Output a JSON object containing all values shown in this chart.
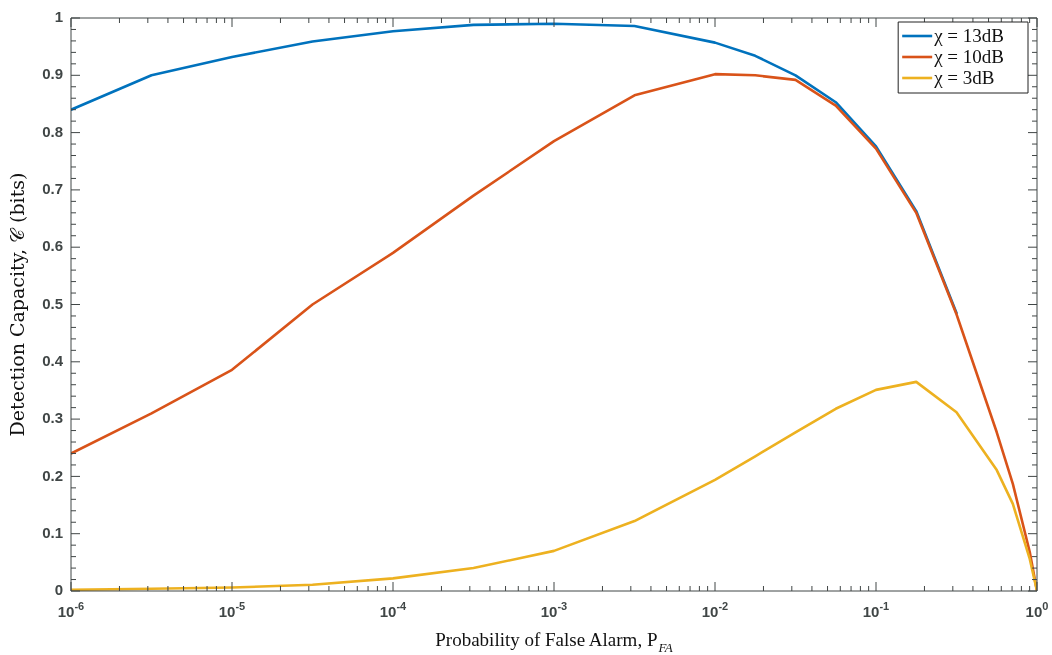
{
  "chart_data": {
    "type": "line",
    "xlabel": "Probability of False Alarm, P$_{FA}$",
    "ylabel": "Detection Capacity, 𝒞 (bits)",
    "log": "x",
    "grid": false,
    "legend": "top right",
    "marker": "none",
    "line_style": "solid",
    "x": [
      1e-06,
      3.162e-06,
      1e-05,
      3.162e-05,
      0.0001,
      0.0003162,
      0.001,
      0.003162,
      0.01,
      0.01778,
      0.03162,
      0.05623,
      0.1,
      0.1778,
      0.3162,
      0.5623,
      0.7079,
      0.9016,
      1
    ],
    "series": [
      {
        "name": "χ = 13dB",
        "color": "#0072bd",
        "values": [
          0.84,
          0.9,
          0.932,
          0.959,
          0.977,
          0.988,
          0.99,
          0.986,
          0.957,
          0.934,
          0.9,
          0.853,
          0.776,
          0.663,
          0.485,
          null,
          null,
          null,
          null
        ]
      },
      {
        "name": "χ = 10dB",
        "color": "#d95319",
        "values": [
          0.24,
          0.31,
          0.386,
          0.5,
          0.59,
          0.69,
          0.785,
          0.865,
          0.902,
          0.9,
          0.892,
          0.847,
          0.772,
          0.66,
          0.483,
          0.277,
          0.187,
          0.068,
          0
        ]
      },
      {
        "name": "χ = 3dB",
        "color": "#edb120",
        "values": [
          0.002,
          0.004,
          0.006,
          0.011,
          0.022,
          0.04,
          0.07,
          0.122,
          0.194,
          0.235,
          0.277,
          0.318,
          0.351,
          0.365,
          0.312,
          0.211,
          0.152,
          0.056,
          0
        ]
      }
    ],
    "xlim": [
      1e-06,
      1
    ],
    "ylim": [
      0,
      1
    ],
    "xticks": [
      {
        "value": 1e-06,
        "label": "10$^{-6}$"
      },
      {
        "value": 2e-06,
        "label": null
      },
      {
        "value": 3e-06,
        "label": null
      },
      {
        "value": 4e-06,
        "label": null
      },
      {
        "value": 5e-06,
        "label": null
      },
      {
        "value": 6e-06,
        "label": null
      },
      {
        "value": 7e-06,
        "label": null
      },
      {
        "value": 8e-06,
        "label": null
      },
      {
        "value": 9e-06,
        "label": null
      },
      {
        "value": 1e-05,
        "label": "10$^{-5}$"
      },
      {
        "value": 2e-05,
        "label": null
      },
      {
        "value": 3e-05,
        "label": null
      },
      {
        "value": 4e-05,
        "label": null
      },
      {
        "value": 5e-05,
        "label": null
      },
      {
        "value": 6e-05,
        "label": null
      },
      {
        "value": 7e-05,
        "label": null
      },
      {
        "value": 8e-05,
        "label": null
      },
      {
        "value": 9e-05,
        "label": null
      },
      {
        "value": 0.0001,
        "label": "10$^{-4}$"
      },
      {
        "value": 0.0002,
        "label": null
      },
      {
        "value": 0.0003,
        "label": null
      },
      {
        "value": 0.0004,
        "label": null
      },
      {
        "value": 0.0005,
        "label": null
      },
      {
        "value": 0.0006,
        "label": null
      },
      {
        "value": 0.0007,
        "label": null
      },
      {
        "value": 0.0008,
        "label": null
      },
      {
        "value": 0.0009,
        "label": null
      },
      {
        "value": 0.001,
        "label": "10$^{-3}$"
      },
      {
        "value": 0.002,
        "label": null
      },
      {
        "value": 0.003,
        "label": null
      },
      {
        "value": 0.004,
        "label": null
      },
      {
        "value": 0.005,
        "label": null
      },
      {
        "value": 0.006,
        "label": null
      },
      {
        "value": 0.007,
        "label": null
      },
      {
        "value": 0.008,
        "label": null
      },
      {
        "value": 0.009,
        "label": null
      },
      {
        "value": 0.01,
        "label": "10$^{-2}$"
      },
      {
        "value": 0.02,
        "label": null
      },
      {
        "value": 0.03,
        "label": null
      },
      {
        "value": 0.04,
        "label": null
      },
      {
        "value": 0.05,
        "label": null
      },
      {
        "value": 0.06,
        "label": null
      },
      {
        "value": 0.07,
        "label": null
      },
      {
        "value": 0.08,
        "label": null
      },
      {
        "value": 0.09,
        "label": null
      },
      {
        "value": 0.1,
        "label": "10$^{-1}$"
      },
      {
        "value": 0.2,
        "label": null
      },
      {
        "value": 0.3,
        "label": null
      },
      {
        "value": 0.4,
        "label": null
      },
      {
        "value": 0.5,
        "label": null
      },
      {
        "value": 0.6,
        "label": null
      },
      {
        "value": 0.7,
        "label": null
      },
      {
        "value": 0.8,
        "label": null
      },
      {
        "value": 0.9,
        "label": null
      },
      {
        "value": 1,
        "label": "10$^{0}$"
      }
    ],
    "yticks": [
      0,
      {
        "value": 0.02,
        "label": null
      },
      {
        "value": 0.04,
        "label": null
      },
      {
        "value": 0.06,
        "label": null
      },
      {
        "value": 0.08,
        "label": null
      },
      0.1,
      {
        "value": 0.12,
        "label": null
      },
      {
        "value": 0.14,
        "label": null
      },
      {
        "value": 0.16,
        "label": null
      },
      {
        "value": 0.18,
        "label": null
      },
      0.2,
      {
        "value": 0.22,
        "label": null
      },
      {
        "value": 0.24,
        "label": null
      },
      {
        "value": 0.26,
        "label": null
      },
      {
        "value": 0.28,
        "label": null
      },
      0.3,
      {
        "value": 0.32,
        "label": null
      },
      {
        "value": 0.34,
        "label": null
      },
      {
        "value": 0.36,
        "label": null
      },
      {
        "value": 0.38,
        "label": null
      },
      0.4,
      {
        "value": 0.42,
        "label": null
      },
      {
        "value": 0.44,
        "label": null
      },
      {
        "value": 0.46,
        "label": null
      },
      {
        "value": 0.48,
        "label": null
      },
      0.5,
      {
        "value": 0.52,
        "label": null
      },
      {
        "value": 0.54,
        "label": null
      },
      {
        "value": 0.56,
        "label": null
      },
      {
        "value": 0.58,
        "label": null
      },
      0.6,
      {
        "value": 0.62,
        "label": null
      },
      {
        "value": 0.64,
        "label": null
      },
      {
        "value": 0.66,
        "label": null
      },
      {
        "value": 0.68,
        "label": null
      },
      0.7,
      {
        "value": 0.72,
        "label": null
      },
      {
        "value": 0.74,
        "label": null
      },
      {
        "value": 0.76,
        "label": null
      },
      {
        "value": 0.78,
        "label": null
      },
      0.8,
      {
        "value": 0.82,
        "label": null
      },
      {
        "value": 0.84,
        "label": null
      },
      {
        "value": 0.86,
        "label": null
      },
      {
        "value": 0.88,
        "label": null
      },
      0.9,
      {
        "value": 0.92,
        "label": null
      },
      {
        "value": 0.94,
        "label": null
      },
      {
        "value": 0.96,
        "label": null
      },
      {
        "value": 0.98,
        "label": null
      },
      1
    ]
  }
}
